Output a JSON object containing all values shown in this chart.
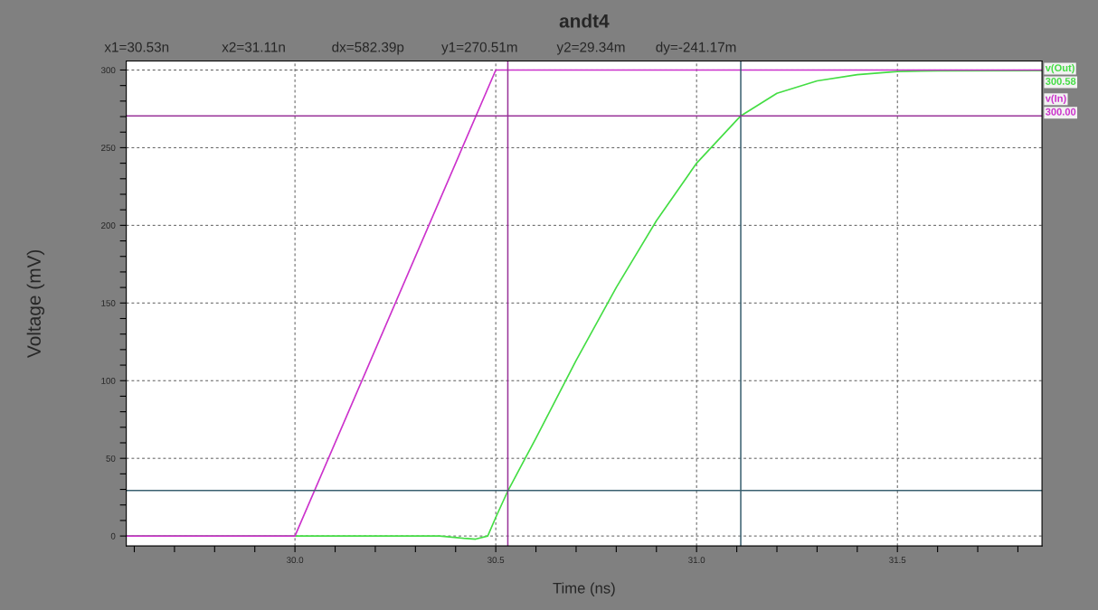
{
  "chart_data": {
    "type": "line",
    "title": "andt4",
    "xlabel": "Time (ns)",
    "ylabel": "Voltage (mV)",
    "annotations": [
      "x1=30.53n",
      "x2=31.11n",
      "dx=582.39p",
      "y1=270.51m",
      "y2=29.34m",
      "dy=-241.17m",
      "300.58",
      "300.00"
    ],
    "series": [
      {
        "name": "v(Out)",
        "color": "#44dd44",
        "x": [
          29.58,
          30.3,
          30.36,
          30.42,
          30.45,
          30.48,
          30.5,
          30.53,
          30.6,
          30.7,
          30.8,
          30.9,
          31.0,
          31.11,
          31.2,
          31.3,
          31.4,
          31.5,
          31.6,
          31.86
        ],
        "values": [
          0,
          0,
          0,
          -1.5,
          -2,
          0,
          12,
          29,
          63,
          113,
          160,
          203,
          240,
          270.5,
          285,
          293,
          297,
          299,
          299.5,
          299.6
        ]
      },
      {
        "name": "v(In)",
        "color": "#cc33cc",
        "x": [
          29.58,
          30.0,
          30.5,
          31.86
        ],
        "values": [
          0,
          0,
          300,
          300
        ]
      }
    ],
    "ref_lines": [
      {
        "axis": "x",
        "value": 30.53,
        "color": "#993399"
      },
      {
        "axis": "x",
        "value": 31.11,
        "color": "#3a6070"
      },
      {
        "axis": "y",
        "value": 270.51,
        "color": "#993399"
      },
      {
        "axis": "y",
        "value": 29.34,
        "color": "#3a6070"
      }
    ],
    "xlim": [
      29.58,
      31.86
    ],
    "ylim": [
      -6.4,
      305.8
    ],
    "xticks": [
      {
        "value": 29.6,
        "label": null
      },
      {
        "value": 29.7,
        "label": null
      },
      {
        "value": 29.8,
        "label": null
      },
      {
        "value": 29.9,
        "label": null
      },
      {
        "value": 30.0,
        "label": "30.0"
      },
      {
        "value": 30.1,
        "label": null
      },
      {
        "value": 30.2,
        "label": null
      },
      {
        "value": 30.3,
        "label": null
      },
      {
        "value": 30.4,
        "label": null
      },
      {
        "value": 30.5,
        "label": "30.5"
      },
      {
        "value": 30.6,
        "label": null
      },
      {
        "value": 30.7,
        "label": null
      },
      {
        "value": 30.8,
        "label": null
      },
      {
        "value": 30.9,
        "label": null
      },
      {
        "value": 31.0,
        "label": "31.0"
      },
      {
        "value": 31.1,
        "label": null
      },
      {
        "value": 31.2,
        "label": null
      },
      {
        "value": 31.3,
        "label": null
      },
      {
        "value": 31.4,
        "label": null
      },
      {
        "value": 31.5,
        "label": "31.5"
      },
      {
        "value": 31.6,
        "label": null
      },
      {
        "value": 31.7,
        "label": null
      },
      {
        "value": 31.8,
        "label": null
      }
    ],
    "yticks": [
      0,
      {
        "value": 10,
        "label": null
      },
      {
        "value": 20,
        "label": null
      },
      {
        "value": 30,
        "label": null
      },
      {
        "value": 40,
        "label": null
      },
      50,
      {
        "value": 60,
        "label": null
      },
      {
        "value": 70,
        "label": null
      },
      {
        "value": 80,
        "label": null
      },
      {
        "value": 90,
        "label": null
      },
      100,
      {
        "value": 110,
        "label": null
      },
      {
        "value": 120,
        "label": null
      },
      {
        "value": 130,
        "label": null
      },
      {
        "value": 140,
        "label": null
      },
      150,
      {
        "value": 160,
        "label": null
      },
      {
        "value": 170,
        "label": null
      },
      {
        "value": 180,
        "label": null
      },
      {
        "value": 190,
        "label": null
      },
      200,
      {
        "value": 210,
        "label": null
      },
      {
        "value": 220,
        "label": null
      },
      {
        "value": 230,
        "label": null
      },
      {
        "value": 240,
        "label": null
      },
      250,
      {
        "value": 260,
        "label": null
      },
      {
        "value": 270,
        "label": null
      },
      {
        "value": 280,
        "label": null
      },
      {
        "value": 290,
        "label": null
      },
      300
    ],
    "grid": true,
    "legend": "top right",
    "marker": "none",
    "line_style": "solid"
  }
}
